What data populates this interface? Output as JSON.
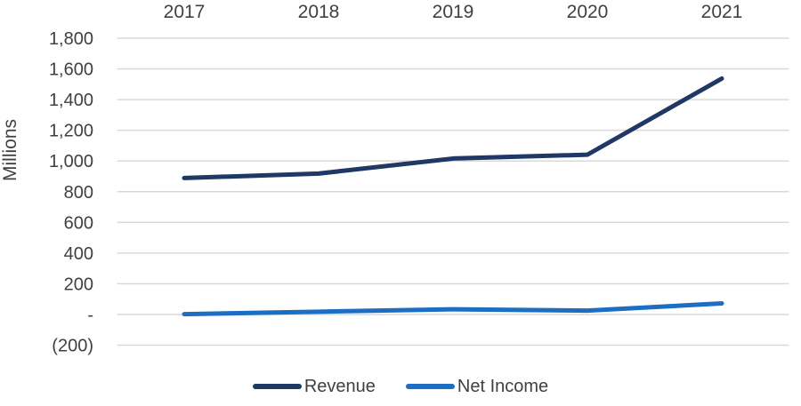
{
  "chart_data": {
    "type": "line",
    "title": "",
    "ylabel": "Millions",
    "categories": [
      "2017",
      "2018",
      "2019",
      "2020",
      "2021"
    ],
    "series": [
      {
        "name": "Revenue",
        "color": "#1f3864",
        "values": [
          889,
          918,
          1016,
          1041,
          1537
        ]
      },
      {
        "name": "Net Income",
        "color": "#1b6ec2",
        "values": [
          2,
          18,
          34,
          25,
          72
        ]
      }
    ],
    "ylim": [
      -200,
      1800
    ],
    "yticks": [
      {
        "value": 1800,
        "label": "1,800"
      },
      {
        "value": 1600,
        "label": "1,600"
      },
      {
        "value": 1400,
        "label": "1,400"
      },
      {
        "value": 1200,
        "label": "1,200"
      },
      {
        "value": 1000,
        "label": "1,000"
      },
      {
        "value": 800,
        "label": "800"
      },
      {
        "value": 600,
        "label": "600"
      },
      {
        "value": 400,
        "label": "400"
      },
      {
        "value": 200,
        "label": "200"
      },
      {
        "value": 0,
        "label": "-"
      },
      {
        "value": -200,
        "label": "(200)"
      }
    ],
    "grid": true,
    "x_axis_position": "top",
    "legend_position": "bottom",
    "colors": {
      "gridline": "#d9d9d9",
      "text": "#404040",
      "background": "#ffffff"
    }
  }
}
